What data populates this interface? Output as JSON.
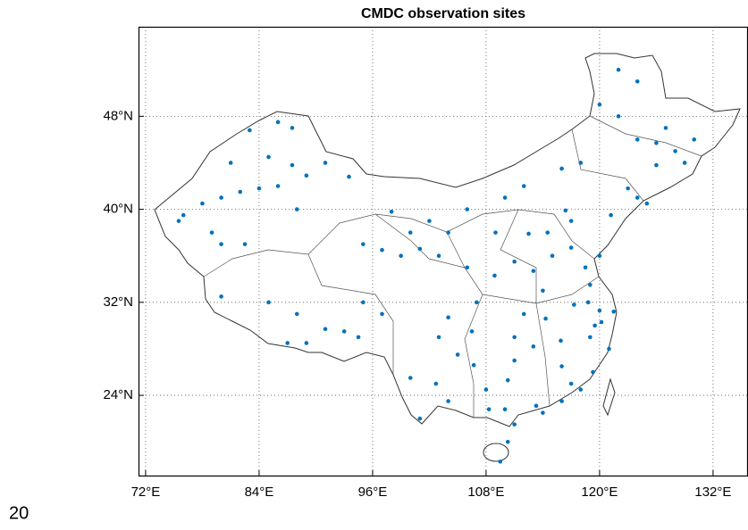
{
  "chart_data": {
    "type": "scatter",
    "title": "CMDC observation sites",
    "xlim": [
      71.25,
      135.6
    ],
    "ylim": [
      17.1,
      55.7
    ],
    "xticks": [
      {
        "value": 72,
        "label": "72°E"
      },
      {
        "value": 84,
        "label": "84°E"
      },
      {
        "value": 96,
        "label": "96°E"
      },
      {
        "value": 108,
        "label": "108°E"
      },
      {
        "value": 120,
        "label": "120°E"
      },
      {
        "value": 132,
        "label": "132°E"
      }
    ],
    "yticks": [
      {
        "value": 24,
        "label": "24°N"
      },
      {
        "value": 32,
        "label": "32°N"
      },
      {
        "value": 40,
        "label": "40°N"
      },
      {
        "value": 48,
        "label": "48°N"
      }
    ],
    "grid": true,
    "color": "#0072bd",
    "x": [
      76,
      75.5,
      78,
      80,
      82,
      84,
      86,
      87.5,
      89,
      85,
      86,
      87.5,
      83,
      81,
      80,
      82.5,
      88,
      93.5,
      91,
      79,
      80,
      85,
      88,
      91,
      93,
      97,
      95,
      89,
      87,
      94.5,
      97,
      99,
      101,
      95,
      100,
      103,
      104,
      98,
      102,
      106,
      110,
      112,
      116,
      118,
      120,
      122,
      124,
      126,
      128,
      130,
      127,
      129,
      124,
      126,
      123,
      122,
      124,
      116.4,
      117,
      114.5,
      112.5,
      115,
      117,
      120,
      118.5,
      113,
      111,
      108.9,
      106,
      109,
      114.3,
      112,
      113,
      111,
      115.9,
      117.3,
      118.8,
      120,
      121.5,
      120.2,
      119,
      121,
      104,
      106.5,
      103,
      106.7,
      102.7,
      100,
      101,
      104,
      113.3,
      114,
      116,
      110,
      108.3,
      110.3,
      119.3,
      118,
      117,
      110.3,
      109.5,
      111,
      119,
      121.2,
      125,
      107,
      105,
      108,
      111,
      114,
      116,
      119.5
    ],
    "values": [
      39.5,
      39,
      40.5,
      41,
      41.5,
      41.8,
      42,
      43.8,
      42.9,
      44.5,
      47.5,
      47,
      46.8,
      44,
      37,
      37,
      40,
      42.8,
      44,
      38,
      32.5,
      32,
      31,
      29.7,
      29.5,
      31,
      32,
      28.5,
      28.5,
      29,
      36.5,
      36,
      36.6,
      37,
      38,
      36,
      38,
      39.8,
      39,
      40,
      41,
      42,
      43.5,
      44,
      49,
      48,
      46,
      45.7,
      45,
      46,
      47,
      44,
      41,
      43.8,
      41.8,
      52,
      51,
      39.9,
      39,
      38,
      37.9,
      36,
      36.7,
      36,
      35,
      34.7,
      35.5,
      34.3,
      35,
      38,
      30.6,
      31,
      28.2,
      27,
      28.7,
      31.8,
      32,
      31.3,
      31.2,
      30.3,
      29,
      28,
      30.7,
      29.5,
      29,
      26.6,
      25,
      25.5,
      22,
      23.5,
      23.1,
      22.5,
      23.5,
      22.8,
      22.8,
      25.3,
      26,
      24.5,
      25,
      20,
      18.3,
      21.5,
      33.5,
      39.5,
      40.5,
      32,
      27.5,
      24.5,
      29,
      33,
      26.5,
      30
    ]
  },
  "page_number": "20"
}
